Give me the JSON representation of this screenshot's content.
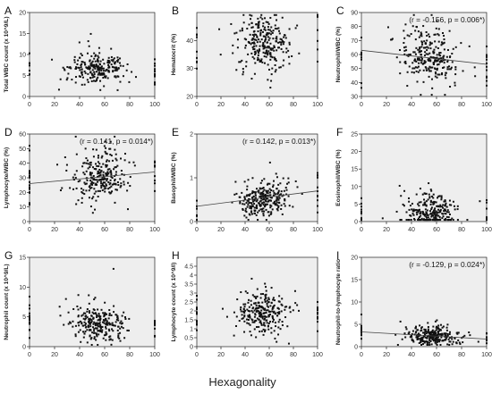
{
  "figure": {
    "x_title": "Hexagonality"
  },
  "chart_data": [
    {
      "panel": "A",
      "type": "scatter",
      "ylabel": "Total WBC count (x 10^9/L)",
      "xlim": [
        0,
        100
      ],
      "xticks": [
        0,
        20,
        40,
        60,
        80,
        100
      ],
      "ylim": [
        0,
        20
      ],
      "yticks": [
        0,
        5,
        10,
        15,
        20
      ],
      "center": [
        55,
        6.5
      ],
      "spread": [
        11,
        1.8
      ],
      "n": 260,
      "annotation": null,
      "trend": null
    },
    {
      "panel": "B",
      "type": "scatter",
      "ylabel": "Hematocrit (%)",
      "xlim": [
        0,
        100
      ],
      "xticks": [
        0,
        20,
        40,
        60,
        80,
        100
      ],
      "ylim": [
        20,
        50
      ],
      "yticks": [
        20,
        30,
        40
      ],
      "center": [
        55,
        39
      ],
      "spread": [
        11,
        5
      ],
      "n": 280,
      "annotation": null,
      "trend": null
    },
    {
      "panel": "C",
      "type": "scatter",
      "ylabel": "Neutrophil/WBC (%)",
      "xlim": [
        0,
        100
      ],
      "xticks": [
        0,
        20,
        40,
        60,
        80,
        100
      ],
      "ylim": [
        30,
        90
      ],
      "yticks": [
        30,
        40,
        50,
        60,
        70,
        80,
        90
      ],
      "center": [
        55,
        59
      ],
      "spread": [
        11,
        10
      ],
      "n": 280,
      "annotation": "(r = -0.156, p = 0.006*)",
      "trend": [
        [
          0,
          63
        ],
        [
          100,
          53
        ]
      ]
    },
    {
      "panel": "D",
      "type": "scatter",
      "ylabel": "Lymphocyte/WBC (%)",
      "xlim": [
        0,
        100
      ],
      "xticks": [
        0,
        20,
        40,
        60,
        80,
        100
      ],
      "ylim": [
        0,
        60
      ],
      "yticks": [
        0,
        10,
        20,
        30,
        40,
        50,
        60
      ],
      "center": [
        55,
        30
      ],
      "spread": [
        11,
        9
      ],
      "n": 280,
      "annotation": "(r = 0.141, p = 0.014*)",
      "trend": [
        [
          0,
          26
        ],
        [
          100,
          34
        ]
      ]
    },
    {
      "panel": "E",
      "type": "scatter",
      "ylabel": "Basophil/WBC (%)",
      "xlim": [
        0,
        100
      ],
      "xticks": [
        0,
        20,
        40,
        60,
        80,
        100
      ],
      "ylim": [
        0,
        2
      ],
      "yticks": [
        0,
        1,
        2
      ],
      "center": [
        55,
        0.5
      ],
      "spread": [
        11,
        0.2
      ],
      "n": 280,
      "annotation": "(r = 0.142, p = 0.013*)",
      "trend": [
        [
          0,
          0.35
        ],
        [
          100,
          0.7
        ]
      ]
    },
    {
      "panel": "F",
      "type": "scatter",
      "ylabel": "Eosinophil/WBC (%)",
      "xlim": [
        0,
        100
      ],
      "xticks": [
        0,
        20,
        40,
        60,
        80,
        100
      ],
      "ylim": [
        0,
        25
      ],
      "yticks": [
        0,
        5,
        10,
        15,
        20,
        25
      ],
      "center": [
        55,
        2.5
      ],
      "spread": [
        11,
        2.5
      ],
      "n": 280,
      "annotation": null,
      "trend": null
    },
    {
      "panel": "G",
      "type": "scatter",
      "ylabel": "Neutrophil count (x 10^9/L)",
      "xlim": [
        0,
        100
      ],
      "xticks": [
        0,
        20,
        40,
        60,
        80,
        100
      ],
      "ylim": [
        0,
        15
      ],
      "yticks": [
        0,
        5,
        10,
        15
      ],
      "center": [
        55,
        3.8
      ],
      "spread": [
        11,
        1.5
      ],
      "n": 280,
      "annotation": null,
      "trend": null
    },
    {
      "panel": "H",
      "type": "scatter",
      "ylabel": "Lymphocyte count (x 10^9/l)",
      "xlim": [
        0,
        100
      ],
      "xticks": [
        0,
        20,
        40,
        60,
        80,
        100
      ],
      "ylim": [
        0,
        5
      ],
      "yticks": [
        0,
        0.5,
        1,
        1.5,
        2,
        2.5,
        3,
        3.5,
        4,
        4.5
      ],
      "center": [
        55,
        1.9
      ],
      "spread": [
        11,
        0.6
      ],
      "n": 280,
      "annotation": null,
      "trend": null
    },
    {
      "panel": "I",
      "type": "scatter",
      "ylabel": "Neutrophil-to-lymphocyte ratio",
      "xlim": [
        0,
        100
      ],
      "xticks": [
        0,
        20,
        40,
        60,
        80,
        100
      ],
      "ylim": [
        0,
        20
      ],
      "yticks": [
        0,
        5,
        10,
        15,
        20
      ],
      "center": [
        55,
        2.4
      ],
      "spread": [
        11,
        1.1
      ],
      "n": 280,
      "annotation": "(r = -0.129, p = 0.024*)",
      "trend": [
        [
          0,
          3.3
        ],
        [
          100,
          1.7
        ]
      ]
    }
  ]
}
